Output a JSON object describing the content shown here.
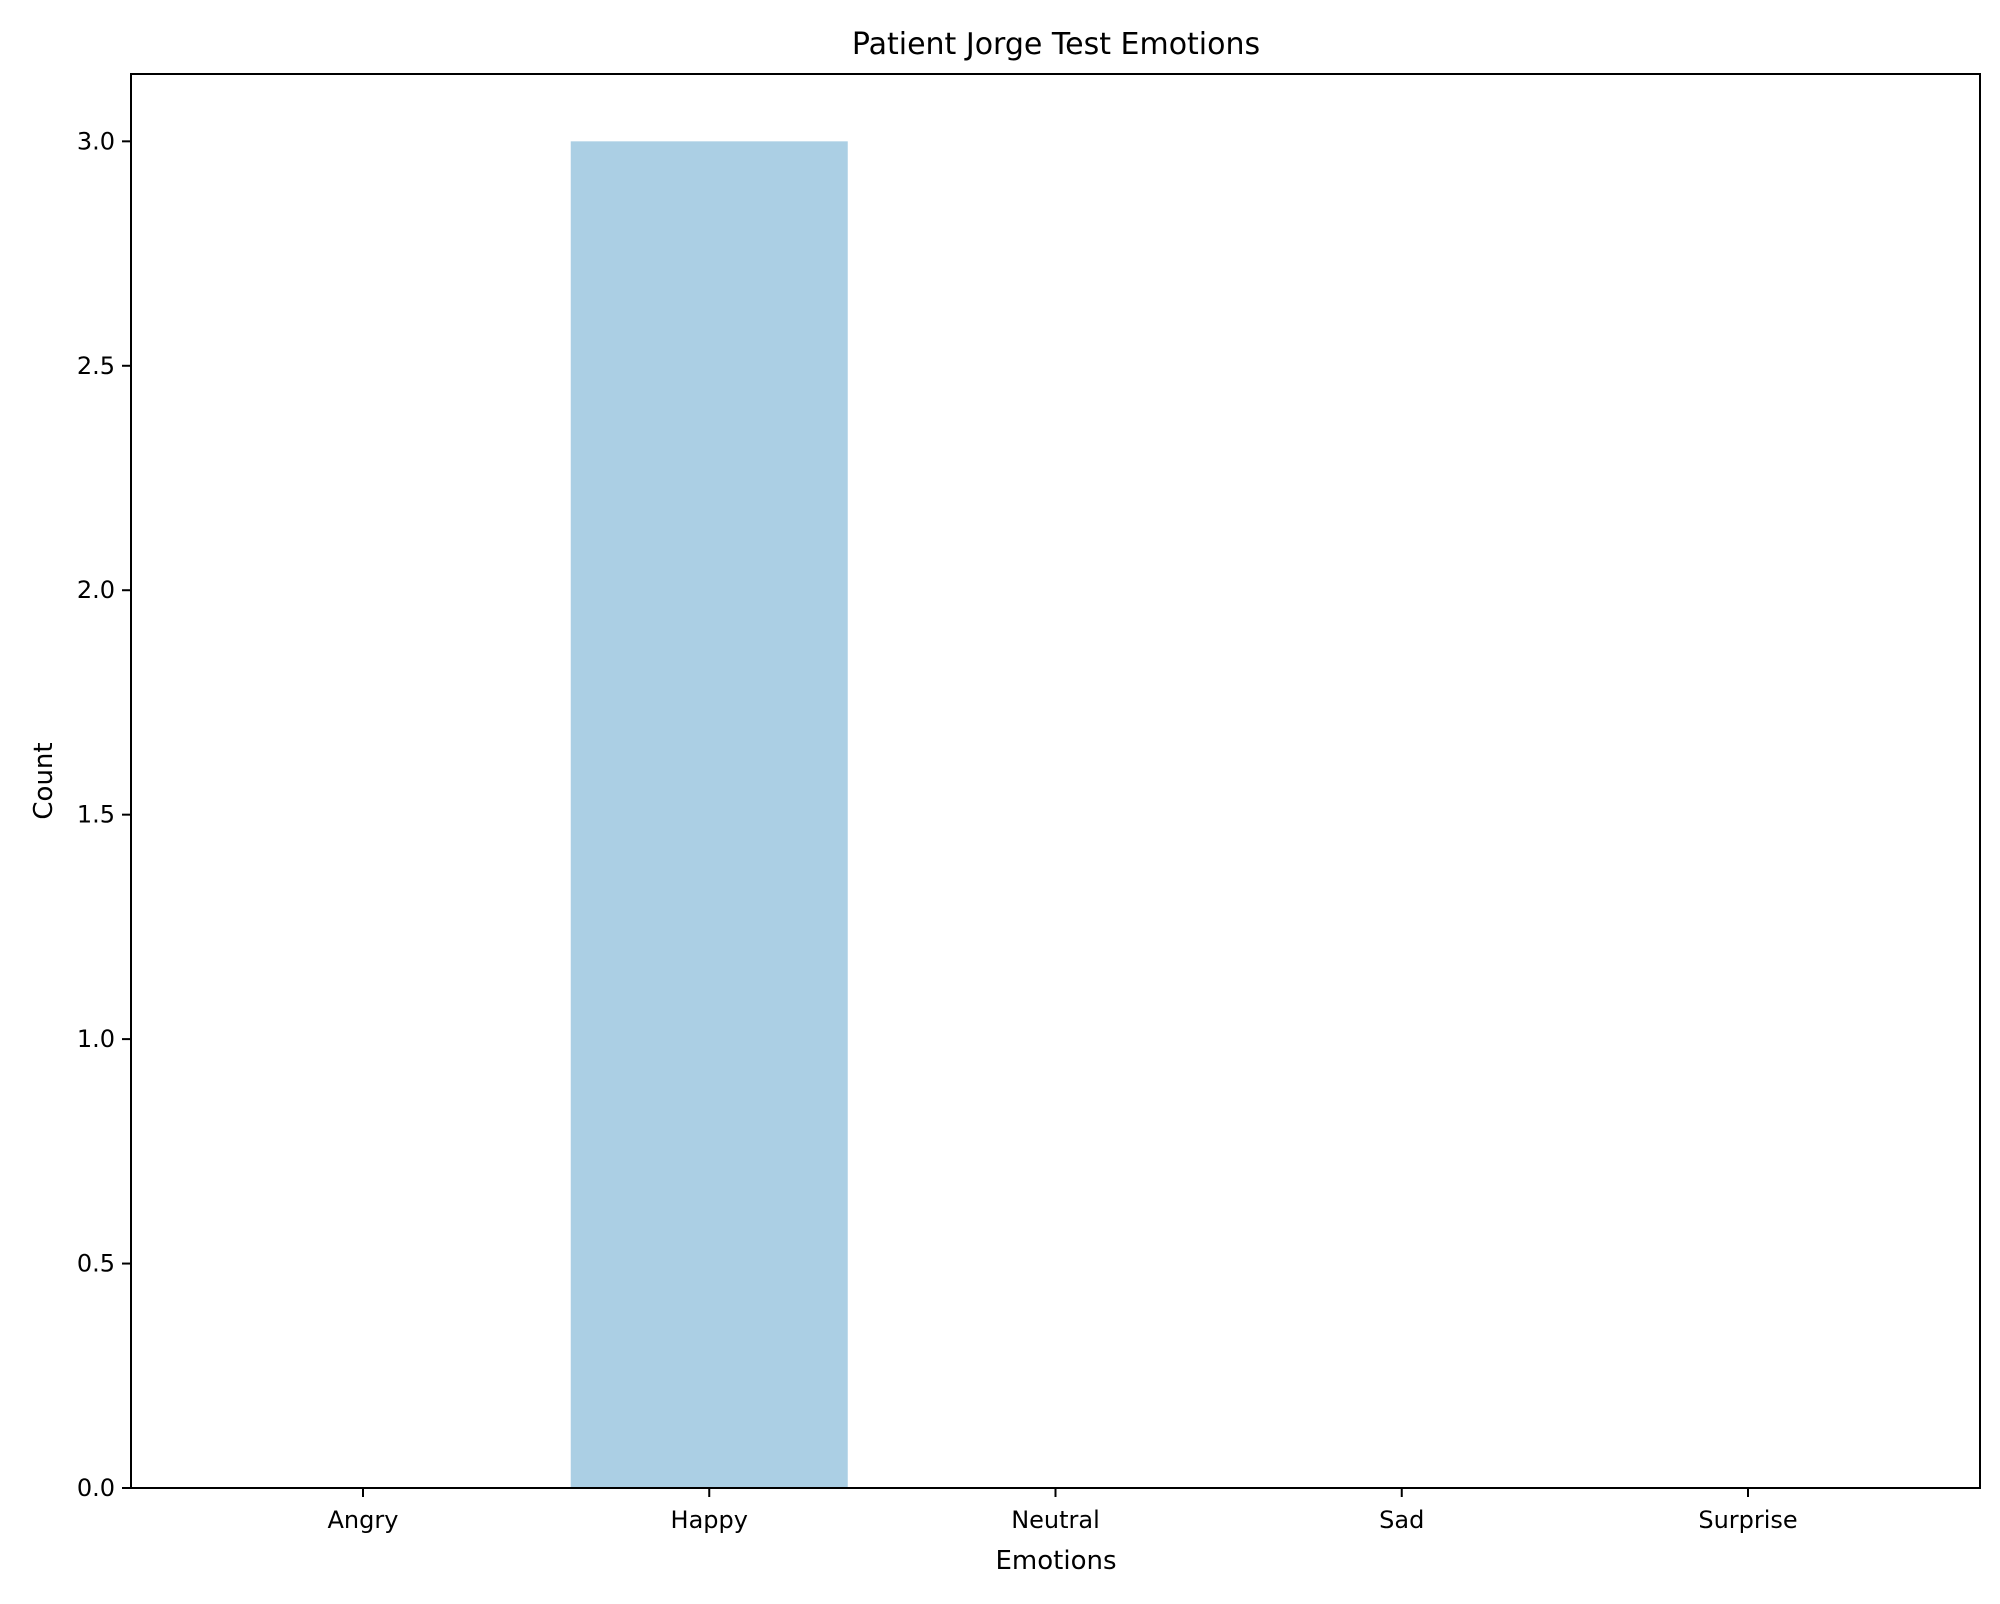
{
  "chart_data": {
    "type": "bar",
    "title": "Patient Jorge Test Emotions",
    "xlabel": "Emotions",
    "ylabel": "Count",
    "categories": [
      "Angry",
      "Happy",
      "Neutral",
      "Sad",
      "Surprise"
    ],
    "values": [
      0,
      3,
      0,
      0,
      0
    ],
    "ylim": [
      0,
      3.15
    ],
    "yticks": [
      0.0,
      0.5,
      1.0,
      1.5,
      2.0,
      2.5,
      3.0
    ],
    "ytick_labels": [
      "0.0",
      "0.5",
      "1.0",
      "1.5",
      "2.0",
      "2.5",
      "3.0"
    ],
    "grid": false,
    "bar_color": "#abcfe4"
  }
}
